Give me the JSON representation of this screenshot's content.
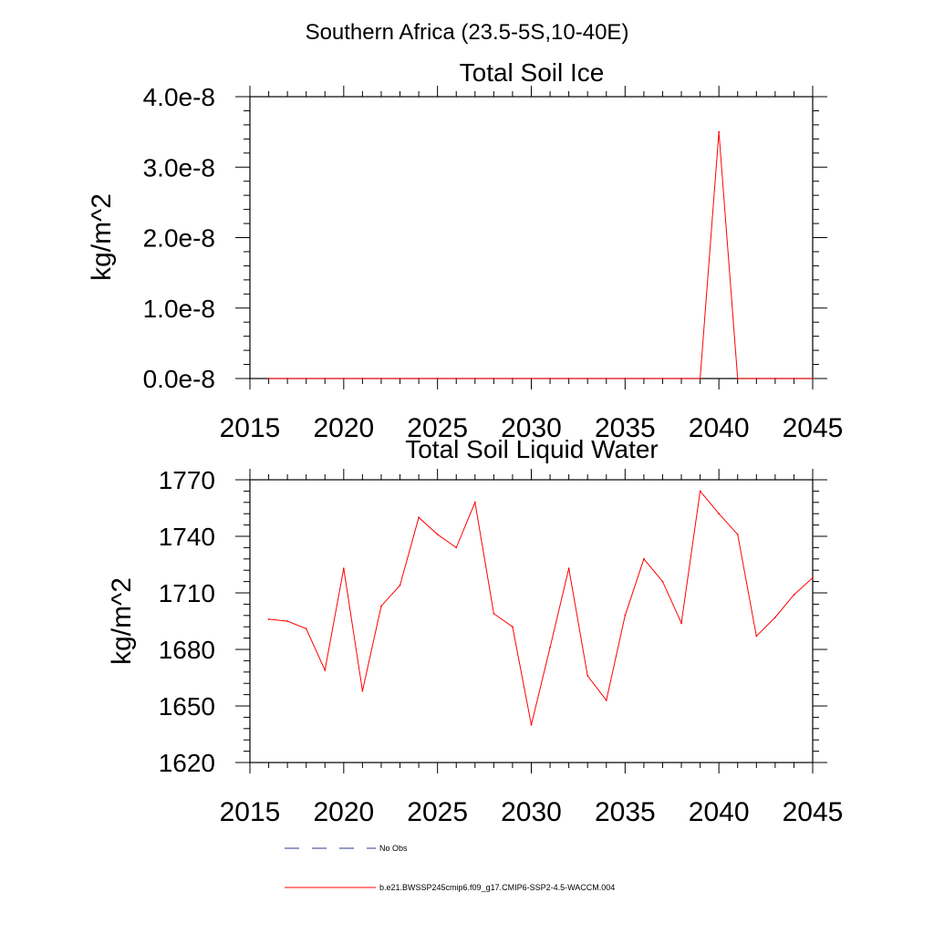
{
  "figure": {
    "suptitle": "Southern Africa (23.5-5S,10-40E)"
  },
  "chart_data": [
    {
      "type": "line",
      "title": "Total Soil Ice",
      "xlabel": "",
      "ylabel": "kg/m^2",
      "xlim": [
        2015,
        2045
      ],
      "ylim": [
        0.0,
        4e-08
      ],
      "x_ticks": [
        2015,
        2020,
        2025,
        2030,
        2035,
        2040,
        2045
      ],
      "x_tick_labels": [
        "2015",
        "2020",
        "2025",
        "2030",
        "2035",
        "2040",
        "2045"
      ],
      "y_ticks": [
        0.0,
        1e-08,
        2e-08,
        3e-08,
        4e-08
      ],
      "y_tick_labels": [
        "0.0e-8",
        "1.0e-8",
        "2.0e-8",
        "3.0e-8",
        "4.0e-8"
      ],
      "grid": false,
      "series": [
        {
          "color": "#ff0000",
          "x": [
            2016,
            2017,
            2018,
            2019,
            2020,
            2021,
            2022,
            2023,
            2024,
            2025,
            2026,
            2027,
            2028,
            2029,
            2030,
            2031,
            2032,
            2033,
            2034,
            2035,
            2036,
            2037,
            2038,
            2039,
            2040,
            2041,
            2042,
            2043,
            2044,
            2045
          ],
          "y": [
            0,
            0,
            0,
            0,
            0,
            0,
            0,
            0,
            0,
            0,
            0,
            0,
            0,
            0,
            0,
            0,
            0,
            0,
            0,
            0,
            0,
            0,
            0,
            0,
            3.5e-08,
            0,
            0,
            0,
            0,
            0
          ]
        }
      ]
    },
    {
      "type": "line",
      "title": "Total Soil Liquid Water",
      "xlabel": "",
      "ylabel": "kg/m^2",
      "xlim": [
        2015,
        2045
      ],
      "ylim": [
        1620,
        1770
      ],
      "x_ticks": [
        2015,
        2020,
        2025,
        2030,
        2035,
        2040,
        2045
      ],
      "x_tick_labels": [
        "2015",
        "2020",
        "2025",
        "2030",
        "2035",
        "2040",
        "2045"
      ],
      "y_ticks": [
        1620,
        1650,
        1680,
        1710,
        1740,
        1770
      ],
      "y_tick_labels": [
        "1620",
        "1650",
        "1680",
        "1710",
        "1740",
        "1770"
      ],
      "grid": false,
      "series": [
        {
          "color": "#ff0000",
          "x": [
            2016,
            2017,
            2018,
            2019,
            2020,
            2021,
            2022,
            2023,
            2024,
            2025,
            2026,
            2027,
            2028,
            2029,
            2030,
            2031,
            2032,
            2033,
            2034,
            2035,
            2036,
            2037,
            2038,
            2039,
            2040,
            2041,
            2042,
            2043,
            2044,
            2045
          ],
          "y": [
            1696,
            1695,
            1691,
            1669,
            1723,
            1658,
            1703,
            1714,
            1750,
            1741,
            1734,
            1758,
            1699,
            1692,
            1640,
            1681,
            1723,
            1666,
            1653,
            1698,
            1728,
            1716,
            1694,
            1764,
            1752,
            1741,
            1687,
            1697,
            1709,
            1718
          ]
        }
      ]
    }
  ],
  "legend": {
    "items": [
      {
        "label": "No Obs",
        "color": "#2b3a8c",
        "style": "dashed"
      },
      {
        "label": "b.e21.BWSSP245cmip6.f09_g17.CMIP6-SSP2-4.5-WACCM.004",
        "color": "#ff0000",
        "style": "solid"
      }
    ]
  }
}
